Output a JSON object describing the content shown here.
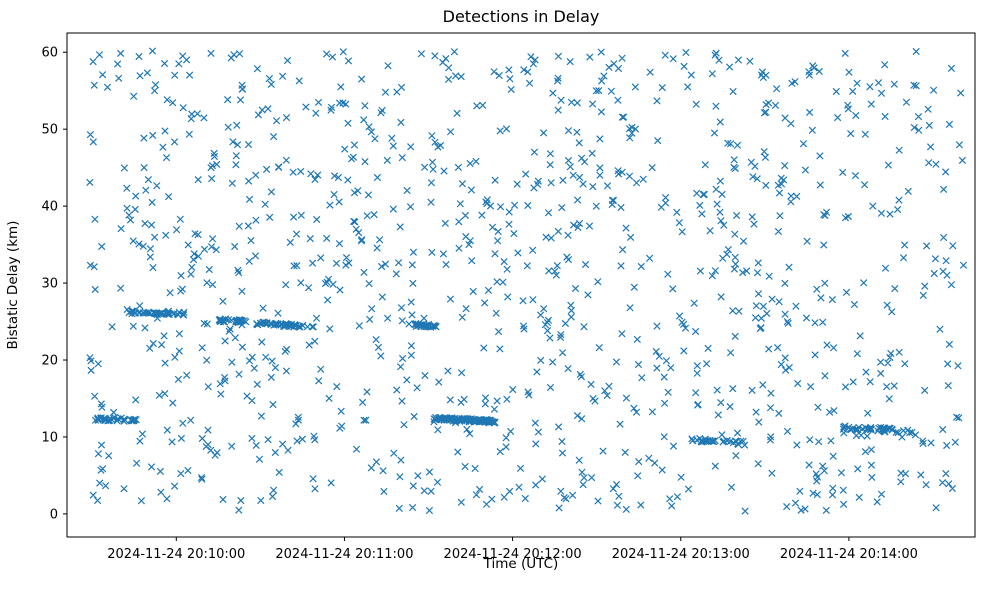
{
  "chart_data": {
    "type": "scatter",
    "title": "Detections in Delay",
    "xlabel": "Time (UTC)",
    "ylabel": "Bistatic Delay (km)",
    "marker": "x",
    "marker_color": "#1f77b4",
    "background_color": "#ffffff",
    "axis_color": "#000000",
    "grid": false,
    "legend": "none",
    "x_tick_labels": [
      "2024-11-24 20:10:00",
      "2024-11-24 20:11:00",
      "2024-11-24 20:12:00",
      "2024-11-24 20:13:00",
      "2024-11-24 20:14:00"
    ],
    "x_tick_seconds": [
      0,
      60,
      120,
      180,
      240
    ],
    "x_domain_seconds": [
      -39,
      285
    ],
    "y_ticks": [
      0,
      10,
      20,
      30,
      40,
      50,
      60
    ],
    "ylim": [
      -3,
      62.5
    ],
    "points": {
      "description": "Dense random detection cloud (uniform) plus several near-horizontal target tracks; t = seconds relative to 2024-11-24 20:10:00 UTC, y = bistatic delay km",
      "noise": {
        "seed": 7,
        "count": 1100,
        "t_range": [
          -31,
          281
        ],
        "y_range": [
          0.3,
          60.2
        ]
      },
      "tracks": [
        {
          "t_range": [
            -29,
            -14
          ],
          "y_start": 12.4,
          "y_end": 12.2,
          "count": 35,
          "jitter": 0.25
        },
        {
          "t_range": [
            -16,
            4
          ],
          "y_start": 26.2,
          "y_end": 26.0,
          "count": 40,
          "jitter": 0.2
        },
        {
          "t_range": [
            15,
            25
          ],
          "y_start": 25.2,
          "y_end": 25.0,
          "count": 28,
          "jitter": 0.2
        },
        {
          "t_range": [
            28,
            50
          ],
          "y_start": 24.8,
          "y_end": 24.3,
          "count": 45,
          "jitter": 0.2
        },
        {
          "t_range": [
            83,
            94
          ],
          "y_start": 24.6,
          "y_end": 24.4,
          "count": 26,
          "jitter": 0.2
        },
        {
          "t_range": [
            92,
            114
          ],
          "y_start": 12.4,
          "y_end": 12.0,
          "count": 110,
          "jitter": 0.22
        },
        {
          "t_range": [
            183,
            202
          ],
          "y_start": 9.7,
          "y_end": 9.2,
          "count": 30,
          "jitter": 0.25
        },
        {
          "t_range": [
            238,
            263
          ],
          "y_start": 11.3,
          "y_end": 10.7,
          "count": 45,
          "jitter": 0.3
        }
      ]
    }
  }
}
